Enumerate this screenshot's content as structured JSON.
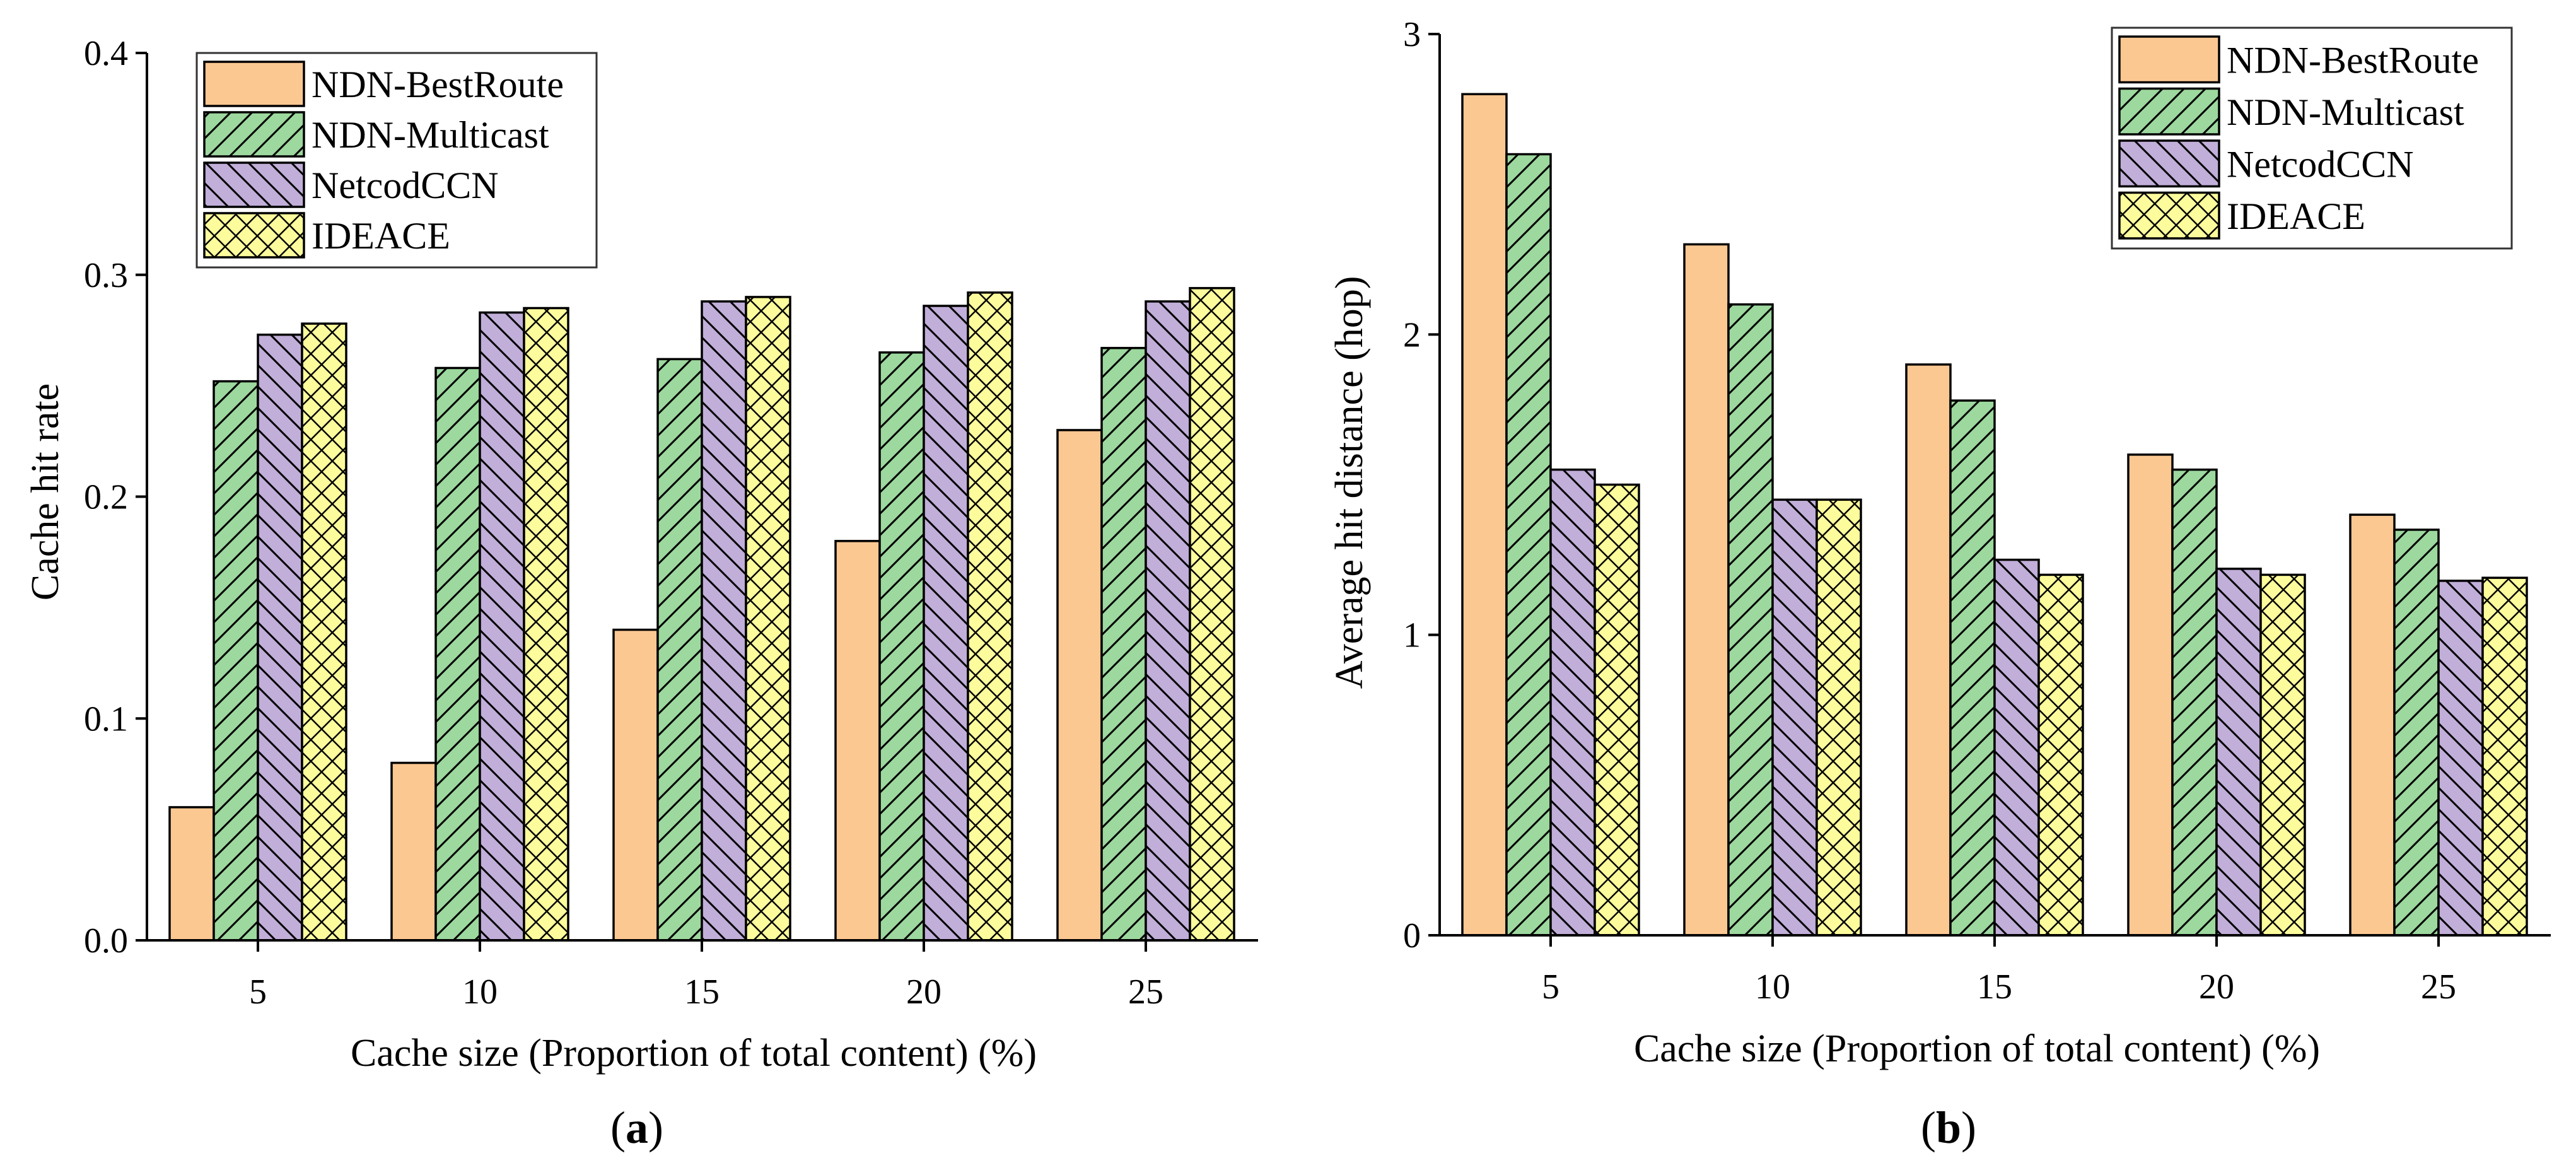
{
  "colors": {
    "NDN-BestRoute": "#FCC892",
    "NDN-Multicast": "#9DD89E",
    "NetcodCCN": "#C1AED9",
    "IDEACE": "#FCFC9C"
  },
  "chart_data": [
    {
      "type": "bar",
      "caption_letter": "a",
      "caption_open": "(",
      "caption_close": ")",
      "xlabel": "Cache size (Proportion of total content) (%)",
      "ylabel": "Cache hit rate",
      "categories": [
        "5",
        "10",
        "15",
        "20",
        "25"
      ],
      "ylim": [
        0,
        0.4
      ],
      "yticks": [
        "0.0",
        "0.1",
        "0.2",
        "0.3",
        "0.4"
      ],
      "legend_position": "top-left",
      "series": [
        {
          "name": "NDN-BestRoute",
          "pattern": "solid",
          "values": [
            0.06,
            0.08,
            0.14,
            0.18,
            0.23
          ]
        },
        {
          "name": "NDN-Multicast",
          "pattern": "hatch-forward",
          "values": [
            0.252,
            0.258,
            0.262,
            0.265,
            0.267
          ]
        },
        {
          "name": "NetcodCCN",
          "pattern": "hatch-back",
          "values": [
            0.273,
            0.283,
            0.288,
            0.286,
            0.288
          ]
        },
        {
          "name": "IDEACE",
          "pattern": "crosshatch",
          "values": [
            0.278,
            0.285,
            0.29,
            0.292,
            0.294
          ]
        }
      ]
    },
    {
      "type": "bar",
      "caption_letter": "b",
      "caption_open": "(",
      "caption_close": ")",
      "xlabel": "Cache size (Proportion of total content) (%)",
      "ylabel": "Average hit distance (hop)",
      "categories": [
        "5",
        "10",
        "15",
        "20",
        "25"
      ],
      "ylim": [
        0,
        3
      ],
      "yticks": [
        "0",
        "1",
        "2",
        "3"
      ],
      "legend_position": "top-right",
      "series": [
        {
          "name": "NDN-BestRoute",
          "pattern": "solid",
          "values": [
            2.8,
            2.3,
            1.9,
            1.6,
            1.4
          ]
        },
        {
          "name": "NDN-Multicast",
          "pattern": "hatch-forward",
          "values": [
            2.6,
            2.1,
            1.78,
            1.55,
            1.35
          ]
        },
        {
          "name": "NetcodCCN",
          "pattern": "hatch-back",
          "values": [
            1.55,
            1.45,
            1.25,
            1.22,
            1.18
          ]
        },
        {
          "name": "IDEACE",
          "pattern": "crosshatch",
          "values": [
            1.5,
            1.45,
            1.2,
            1.2,
            1.19
          ]
        }
      ]
    }
  ]
}
